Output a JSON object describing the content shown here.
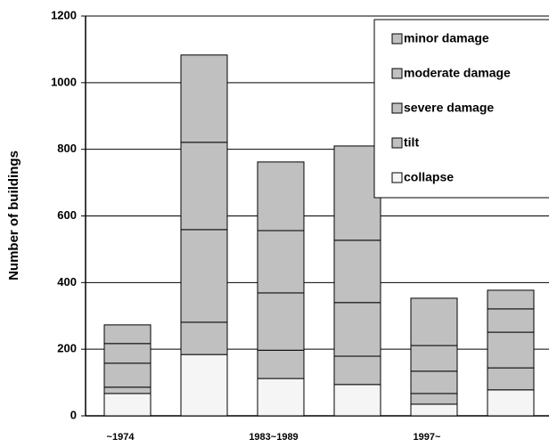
{
  "chart_data": {
    "type": "stacked_bar",
    "y_label": "Number of buildings",
    "categories": [
      "~1974",
      null,
      "1983~1989",
      null,
      "1997~",
      null
    ],
    "series": [
      {
        "name": "collapse",
        "color": "#f5f5f5",
        "values": [
          67,
          184,
          112,
          94,
          35,
          78
        ]
      },
      {
        "name": "tilt",
        "color": "#c0c0c0",
        "values": [
          19,
          97,
          85,
          85,
          32,
          66
        ]
      },
      {
        "name": "severe damage",
        "color": "#c0c0c0",
        "values": [
          72,
          278,
          172,
          161,
          67,
          107
        ]
      },
      {
        "name": "moderate damage",
        "color": "#c0c0c0",
        "values": [
          59,
          262,
          187,
          187,
          77,
          70
        ]
      },
      {
        "name": "minor damage",
        "color": "#c0c0c0",
        "values": [
          56,
          262,
          206,
          283,
          142,
          56
        ]
      }
    ],
    "ylim": [
      0,
      1200
    ],
    "yticks": [
      0,
      200,
      400,
      600,
      800,
      1000,
      1200
    ],
    "grid": true
  }
}
